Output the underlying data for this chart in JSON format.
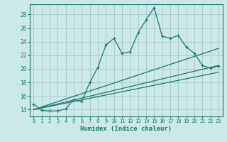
{
  "xlabel": "Humidex (Indice chaleur)",
  "bg_color": "#cce8e8",
  "grid_color": "#aacccc",
  "line_color": "#1a7a6e",
  "xlim": [
    -0.5,
    23.5
  ],
  "ylim": [
    13.0,
    29.5
  ],
  "yticks": [
    14,
    16,
    18,
    20,
    22,
    24,
    26,
    28
  ],
  "xticks": [
    0,
    1,
    2,
    3,
    4,
    5,
    6,
    7,
    8,
    9,
    10,
    11,
    12,
    13,
    14,
    15,
    16,
    17,
    18,
    19,
    20,
    21,
    22,
    23
  ],
  "series1_x": [
    0,
    1,
    2,
    3,
    4,
    5,
    6,
    7,
    8,
    9,
    10,
    11,
    12,
    13,
    14,
    15,
    16,
    17,
    18,
    19,
    20,
    21,
    22,
    23
  ],
  "series1_y": [
    14.8,
    13.9,
    13.8,
    13.8,
    14.1,
    15.5,
    15.2,
    18.0,
    20.2,
    23.5,
    24.5,
    22.3,
    22.5,
    25.3,
    27.2,
    29.0,
    24.8,
    24.5,
    24.9,
    23.2,
    22.3,
    20.5,
    20.1,
    20.4
  ],
  "series2_x": [
    0,
    23
  ],
  "series2_y": [
    14.0,
    23.0
  ],
  "series3_x": [
    0,
    23
  ],
  "series3_y": [
    14.0,
    20.5
  ],
  "series4_x": [
    0,
    23
  ],
  "series4_y": [
    14.0,
    19.5
  ]
}
